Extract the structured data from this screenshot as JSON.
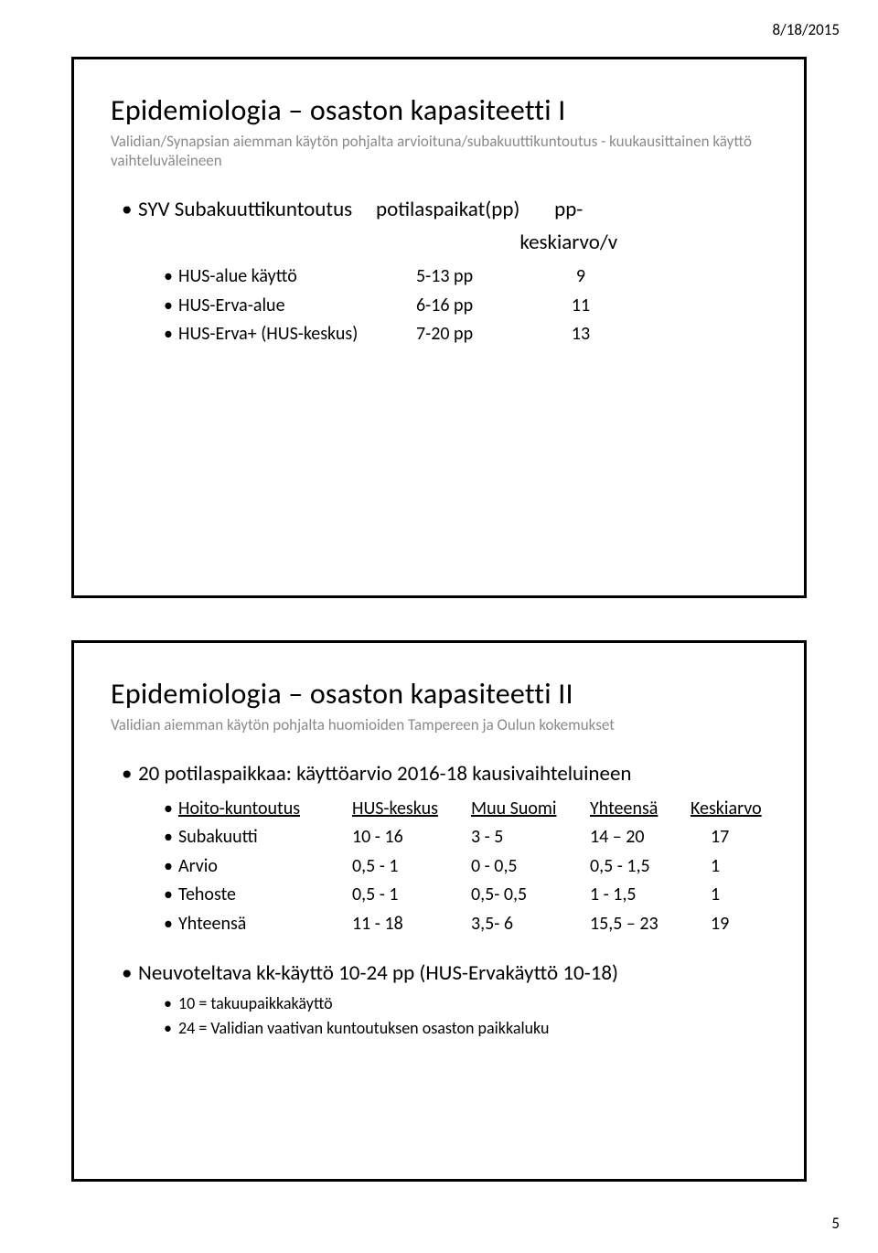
{
  "header": {
    "date": "8/18/2015",
    "page_number": "5"
  },
  "slide1": {
    "title": "Epidemiologia – osaston kapasiteetti I",
    "subtitle": "Validian/Synapsian aiemman käytön pohjalta arvioituna/subakuuttikuntoutus - kuukausittainen käyttö vaihteluväleineen",
    "header_row": {
      "c1": "SYV Subakuuttikuntoutus",
      "c2": "potilaspaikat(pp)",
      "c3": "pp-keskiarvo/v"
    },
    "rows": [
      {
        "c1": "HUS-alue käyttö",
        "c2": "5-13 pp",
        "c3": "9"
      },
      {
        "c1": "HUS-Erva-alue",
        "c2": "6-16 pp",
        "c3": "11"
      },
      {
        "c1": "HUS-Erva+ (HUS-keskus)",
        "c2": "7-20 pp",
        "c3": "13"
      }
    ]
  },
  "slide2": {
    "title": "Epidemiologia – osaston kapasiteetti II",
    "subtitle": "Validian aiemman käytön pohjalta huomioiden Tampereen ja Oulun kokemukset",
    "line1": "20 potilaspaikkaa: käyttöarvio 2016-18 kausivaihteluineen",
    "table_header": {
      "h1": "Hoito-kuntoutus",
      "h2": "HUS-keskus",
      "h3": "Muu Suomi",
      "h4": "Yhteensä",
      "h5": "Keskiarvo"
    },
    "data": [
      {
        "d1": "Subakuutti",
        "d2": "10  -  16",
        "d3": "3  -  5",
        "d4": "14 – 20",
        "d5": "17"
      },
      {
        "d1": "Arvio",
        "d2": "0,5 -    1",
        "d3": "0  -  0,5",
        "d4": "0,5 -  1,5",
        "d5": "1"
      },
      {
        "d1": "Tehoste",
        "d2": "0,5 -    1",
        "d3": "0,5- 0,5",
        "d4": "1   -  1,5",
        "d5": "1"
      },
      {
        "d1": "Yhteensä",
        "d2": "11  -  18",
        "d3": "3,5- 6",
        "d4": "15,5 – 23",
        "d5": "19"
      }
    ],
    "footer_line": "Neuvoteltava kk-käyttö 10-24 pp (HUS-Ervakäyttö 10-18)",
    "footer_sub": [
      "10 = takuupaikkakäyttö",
      "24 = Validian vaativan kuntoutuksen osaston paikkaluku"
    ]
  }
}
